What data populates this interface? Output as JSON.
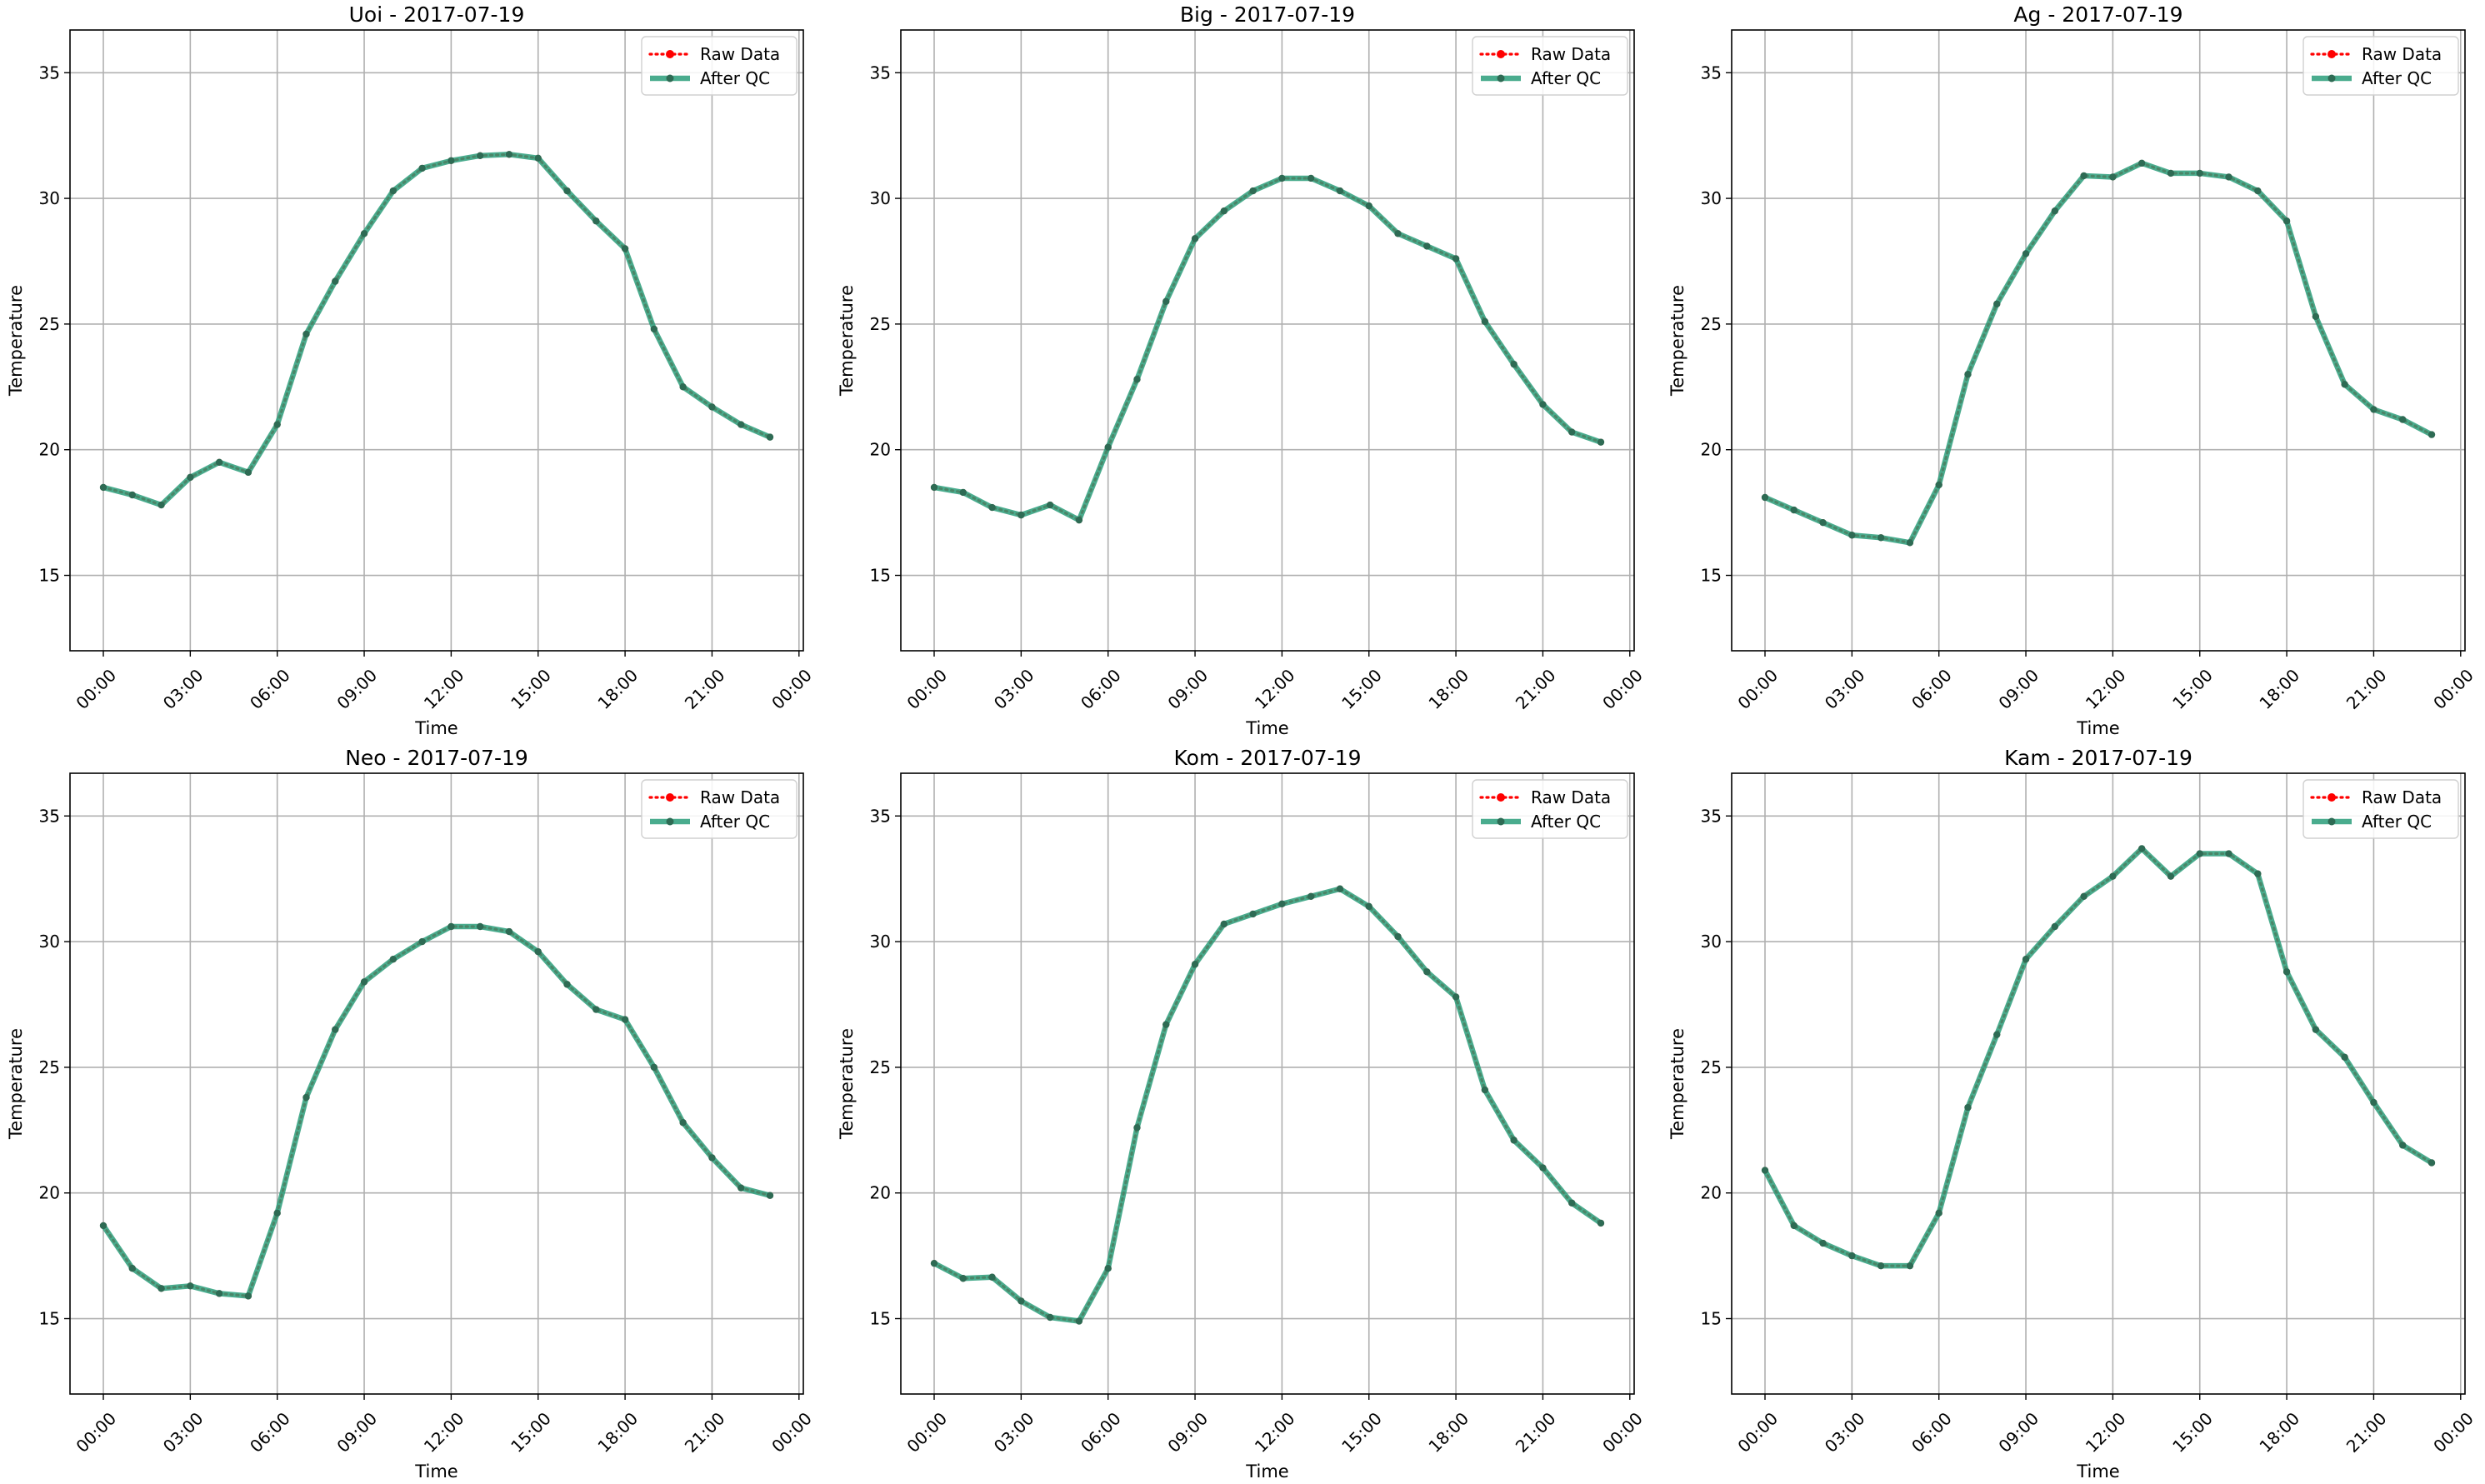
{
  "figure": {
    "xlabel": "Time",
    "ylabel": "Temperature",
    "xticks": [
      "00:00",
      "03:00",
      "06:00",
      "09:00",
      "12:00",
      "15:00",
      "18:00",
      "21:00",
      "00:00"
    ],
    "yticks": [
      15,
      20,
      25,
      30,
      35
    ],
    "legend": [
      "Raw Data",
      "After QC"
    ],
    "colors": {
      "raw": "#ff0000",
      "qc": "#2a9d7a",
      "qc_marker": "#2e6b54",
      "grid": "#b0b0b0"
    }
  },
  "chart_data": [
    {
      "type": "line",
      "title": "Uoi - 2017-07-19",
      "xlabel": "Time",
      "ylabel": "Temperature",
      "ylim": [
        12,
        36.7
      ],
      "xlim_hours": [
        -1.15,
        24.15
      ],
      "grid": true,
      "legend_position": "upper right",
      "x_hours": [
        0,
        1,
        2,
        3,
        4,
        5,
        6,
        7,
        8,
        9,
        10,
        11,
        12,
        13,
        14,
        15,
        16,
        17,
        18,
        19,
        20,
        21,
        22,
        23
      ],
      "series": [
        {
          "name": "Raw Data",
          "values": [
            18.5,
            18.2,
            17.8,
            18.9,
            19.5,
            19.1,
            21.0,
            24.6,
            26.7,
            28.6,
            30.3,
            31.2,
            31.5,
            31.7,
            31.75,
            31.6,
            30.3,
            29.1,
            28.0,
            24.8,
            22.5,
            21.7,
            21.0,
            20.5
          ]
        },
        {
          "name": "After QC",
          "values": [
            18.5,
            18.2,
            17.8,
            18.9,
            19.5,
            19.1,
            21.0,
            24.6,
            26.7,
            28.6,
            30.3,
            31.2,
            31.5,
            31.7,
            31.75,
            31.6,
            30.3,
            29.1,
            28.0,
            24.8,
            22.5,
            21.7,
            21.0,
            20.5
          ]
        }
      ]
    },
    {
      "type": "line",
      "title": "Big - 2017-07-19",
      "xlabel": "Time",
      "ylabel": "Temperature",
      "ylim": [
        12,
        36.7
      ],
      "xlim_hours": [
        -1.15,
        24.15
      ],
      "grid": true,
      "legend_position": "upper right",
      "x_hours": [
        0,
        1,
        2,
        3,
        4,
        5,
        6,
        7,
        8,
        9,
        10,
        11,
        12,
        13,
        14,
        15,
        16,
        17,
        18,
        19,
        20,
        21,
        22,
        23
      ],
      "series": [
        {
          "name": "Raw Data",
          "values": [
            18.5,
            18.3,
            17.7,
            17.4,
            17.8,
            17.2,
            20.1,
            22.8,
            25.9,
            28.4,
            29.5,
            30.3,
            30.8,
            30.8,
            30.3,
            29.7,
            28.6,
            28.1,
            27.6,
            25.1,
            23.4,
            21.8,
            20.7,
            20.3
          ]
        },
        {
          "name": "After QC",
          "values": [
            18.5,
            18.3,
            17.7,
            17.4,
            17.8,
            17.2,
            20.1,
            22.8,
            25.9,
            28.4,
            29.5,
            30.3,
            30.8,
            30.8,
            30.3,
            29.7,
            28.6,
            28.1,
            27.6,
            25.1,
            23.4,
            21.8,
            20.7,
            20.3
          ]
        }
      ]
    },
    {
      "type": "line",
      "title": "Ag - 2017-07-19",
      "xlabel": "Time",
      "ylabel": "Temperature",
      "ylim": [
        12,
        36.7
      ],
      "xlim_hours": [
        -1.15,
        24.15
      ],
      "grid": true,
      "legend_position": "upper right",
      "x_hours": [
        0,
        1,
        2,
        3,
        4,
        5,
        6,
        7,
        8,
        9,
        10,
        11,
        12,
        13,
        14,
        15,
        16,
        17,
        18,
        19,
        20,
        21,
        22,
        23
      ],
      "series": [
        {
          "name": "Raw Data",
          "values": [
            18.1,
            17.6,
            17.1,
            16.6,
            16.5,
            16.3,
            18.6,
            23.0,
            25.8,
            27.8,
            29.5,
            30.9,
            30.85,
            31.4,
            31.0,
            31.0,
            30.85,
            30.3,
            29.1,
            25.3,
            22.6,
            21.6,
            21.2,
            20.6
          ]
        },
        {
          "name": "After QC",
          "values": [
            18.1,
            17.6,
            17.1,
            16.6,
            16.5,
            16.3,
            18.6,
            23.0,
            25.8,
            27.8,
            29.5,
            30.9,
            30.85,
            31.4,
            31.0,
            31.0,
            30.85,
            30.3,
            29.1,
            25.3,
            22.6,
            21.6,
            21.2,
            20.6
          ]
        }
      ]
    },
    {
      "type": "line",
      "title": "Neo - 2017-07-19",
      "xlabel": "Time",
      "ylabel": "Temperature",
      "ylim": [
        12,
        36.7
      ],
      "xlim_hours": [
        -1.15,
        24.15
      ],
      "grid": true,
      "legend_position": "upper right",
      "x_hours": [
        0,
        1,
        2,
        3,
        4,
        5,
        6,
        7,
        8,
        9,
        10,
        11,
        12,
        13,
        14,
        15,
        16,
        17,
        18,
        19,
        20,
        21,
        22,
        23
      ],
      "series": [
        {
          "name": "Raw Data",
          "values": [
            18.7,
            17.0,
            16.2,
            16.3,
            16.0,
            15.9,
            19.2,
            23.8,
            26.5,
            28.4,
            29.3,
            30.0,
            30.6,
            30.6,
            30.4,
            29.6,
            28.3,
            27.3,
            26.9,
            25.0,
            22.8,
            21.4,
            20.2,
            19.9
          ]
        },
        {
          "name": "After QC",
          "values": [
            18.7,
            17.0,
            16.2,
            16.3,
            16.0,
            15.9,
            19.2,
            23.8,
            26.5,
            28.4,
            29.3,
            30.0,
            30.6,
            30.6,
            30.4,
            29.6,
            28.3,
            27.3,
            26.9,
            25.0,
            22.8,
            21.4,
            20.2,
            19.9
          ]
        }
      ]
    },
    {
      "type": "line",
      "title": "Kom - 2017-07-19",
      "xlabel": "Time",
      "ylabel": "Temperature",
      "ylim": [
        12,
        36.7
      ],
      "xlim_hours": [
        -1.15,
        24.15
      ],
      "grid": true,
      "legend_position": "upper right",
      "x_hours": [
        0,
        1,
        2,
        3,
        4,
        5,
        6,
        7,
        8,
        9,
        10,
        11,
        12,
        13,
        14,
        15,
        16,
        17,
        18,
        19,
        20,
        21,
        22,
        23
      ],
      "series": [
        {
          "name": "Raw Data",
          "values": [
            17.2,
            16.6,
            16.65,
            15.7,
            15.05,
            14.9,
            17.0,
            22.6,
            26.7,
            29.1,
            30.7,
            31.1,
            31.5,
            31.8,
            32.1,
            31.4,
            30.2,
            28.8,
            27.8,
            24.1,
            22.1,
            21.0,
            19.6,
            18.8
          ]
        },
        {
          "name": "After QC",
          "values": [
            17.2,
            16.6,
            16.65,
            15.7,
            15.05,
            14.9,
            17.0,
            22.6,
            26.7,
            29.1,
            30.7,
            31.1,
            31.5,
            31.8,
            32.1,
            31.4,
            30.2,
            28.8,
            27.8,
            24.1,
            22.1,
            21.0,
            19.6,
            18.8
          ]
        }
      ]
    },
    {
      "type": "line",
      "title": "Kam - 2017-07-19",
      "xlabel": "Time",
      "ylabel": "Temperature",
      "ylim": [
        12,
        36.7
      ],
      "xlim_hours": [
        -1.15,
        24.15
      ],
      "grid": true,
      "legend_position": "upper right",
      "x_hours": [
        0,
        1,
        2,
        3,
        4,
        5,
        6,
        7,
        8,
        9,
        10,
        11,
        12,
        13,
        14,
        15,
        16,
        17,
        18,
        19,
        20,
        21,
        22,
        23
      ],
      "series": [
        {
          "name": "Raw Data",
          "values": [
            20.9,
            18.7,
            18.0,
            17.5,
            17.1,
            17.1,
            19.2,
            23.4,
            26.3,
            29.3,
            30.6,
            31.8,
            32.6,
            33.7,
            32.6,
            33.5,
            33.5,
            32.7,
            28.8,
            26.5,
            25.4,
            23.6,
            21.9,
            21.2
          ]
        },
        {
          "name": "After QC",
          "values": [
            20.9,
            18.7,
            18.0,
            17.5,
            17.1,
            17.1,
            19.2,
            23.4,
            26.3,
            29.3,
            30.6,
            31.8,
            32.6,
            33.7,
            32.6,
            33.5,
            33.5,
            32.7,
            28.8,
            26.5,
            25.4,
            23.6,
            21.9,
            21.2
          ]
        }
      ]
    }
  ]
}
